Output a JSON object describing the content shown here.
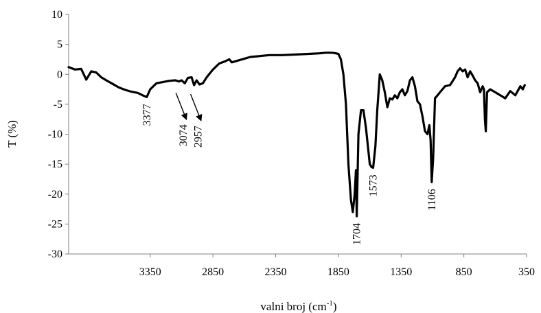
{
  "chart_data": {
    "type": "line",
    "title": "",
    "xlabel": "valni broj (cm",
    "xlabel_sup": "-1",
    "xlabel_close": ")",
    "ylabel": "T (%)",
    "xlim": [
      4000,
      350
    ],
    "ylim": [
      -30,
      10
    ],
    "x_reversed": true,
    "grid": false,
    "legend": "none",
    "x_ticks": [
      3350,
      2850,
      2350,
      1850,
      1350,
      850,
      350
    ],
    "x_tick_labels": [
      "3350",
      "2850",
      "2350",
      "1850",
      "1350",
      "850",
      "350"
    ],
    "y_ticks": [
      10,
      5,
      0,
      -5,
      -10,
      -15,
      -20,
      -25,
      -30
    ],
    "y_tick_labels": [
      "10",
      "5",
      "0",
      "-5",
      "-10",
      "-15",
      "-20",
      "-25",
      "-30"
    ],
    "line_color": "#000000",
    "series": [
      {
        "x": [
          4000,
          3950,
          3900,
          3860,
          3820,
          3780,
          3740,
          3700,
          3650,
          3600,
          3550,
          3500,
          3450,
          3400,
          3377,
          3350,
          3300,
          3250,
          3200,
          3150,
          3120,
          3100,
          3074,
          3050,
          3020,
          3000,
          2980,
          2957,
          2930,
          2900,
          2850,
          2800,
          2750,
          2720,
          2700,
          2650,
          2600,
          2550,
          2500,
          2450,
          2400,
          2300,
          2200,
          2100,
          2000,
          1950,
          1900,
          1870,
          1850,
          1830,
          1810,
          1790,
          1770,
          1750,
          1735,
          1720,
          1710,
          1704,
          1690,
          1670,
          1650,
          1630,
          1600,
          1585,
          1573,
          1555,
          1540,
          1520,
          1500,
          1480,
          1460,
          1440,
          1420,
          1400,
          1380,
          1360,
          1340,
          1320,
          1300,
          1280,
          1260,
          1240,
          1220,
          1200,
          1180,
          1160,
          1140,
          1125,
          1115,
          1106,
          1095,
          1080,
          1060,
          1040,
          1000,
          960,
          920,
          900,
          880,
          860,
          840,
          820,
          800,
          780,
          760,
          740,
          720,
          700,
          690,
          682,
          675,
          665,
          640,
          600,
          560,
          520,
          480,
          440,
          400,
          380,
          365
        ],
        "y": [
          1.2,
          0.8,
          0.9,
          -0.9,
          0.5,
          0.3,
          -0.5,
          -1.0,
          -1.6,
          -2.2,
          -2.6,
          -2.9,
          -3.1,
          -3.6,
          -3.8,
          -2.5,
          -1.5,
          -1.3,
          -1.1,
          -1.0,
          -1.2,
          -1.0,
          -1.5,
          -0.6,
          -0.5,
          -1.8,
          -1.0,
          -1.7,
          -1.5,
          -0.5,
          0.8,
          1.8,
          2.2,
          2.5,
          2.0,
          2.3,
          2.6,
          2.9,
          3.0,
          3.1,
          3.2,
          3.2,
          3.3,
          3.4,
          3.5,
          3.6,
          3.6,
          3.5,
          3.4,
          2.5,
          0.0,
          -5.0,
          -15.0,
          -21.0,
          -23.0,
          -20.0,
          -16.0,
          -23.7,
          -10.0,
          -6.0,
          -6.0,
          -9.0,
          -15.0,
          -15.5,
          -15.6,
          -12.0,
          -6.0,
          0.0,
          -1.0,
          -3.0,
          -5.5,
          -4.0,
          -4.2,
          -3.5,
          -4.0,
          -3.0,
          -2.5,
          -3.5,
          -2.8,
          -1.0,
          -0.5,
          -2.0,
          -4.5,
          -5.0,
          -7.0,
          -9.5,
          -10.0,
          -8.5,
          -11.0,
          -18.0,
          -14.0,
          -4.0,
          -3.5,
          -3.0,
          -2.0,
          -1.8,
          -0.5,
          0.5,
          1.0,
          0.5,
          0.8,
          -0.5,
          0.5,
          -0.2,
          -1.0,
          -1.5,
          -3.0,
          -2.0,
          -2.5,
          -7.5,
          -9.5,
          -3.0,
          -2.5,
          -3.0,
          -3.5,
          -4.0,
          -2.8,
          -3.5,
          -2.0,
          -2.5,
          -1.8
        ]
      }
    ],
    "annotations": [
      {
        "text": "3377",
        "x": 3377,
        "y": -3.8
      },
      {
        "text": "3074",
        "x": 3074,
        "y": -1.5,
        "arrow": true
      },
      {
        "text": "2957",
        "x": 2957,
        "y": -1.7,
        "arrow": true
      },
      {
        "text": "1704",
        "x": 1704,
        "y": -23.7
      },
      {
        "text": "1573",
        "x": 1573,
        "y": -15.6
      },
      {
        "text": "1106",
        "x": 1106,
        "y": -18.0
      }
    ]
  }
}
